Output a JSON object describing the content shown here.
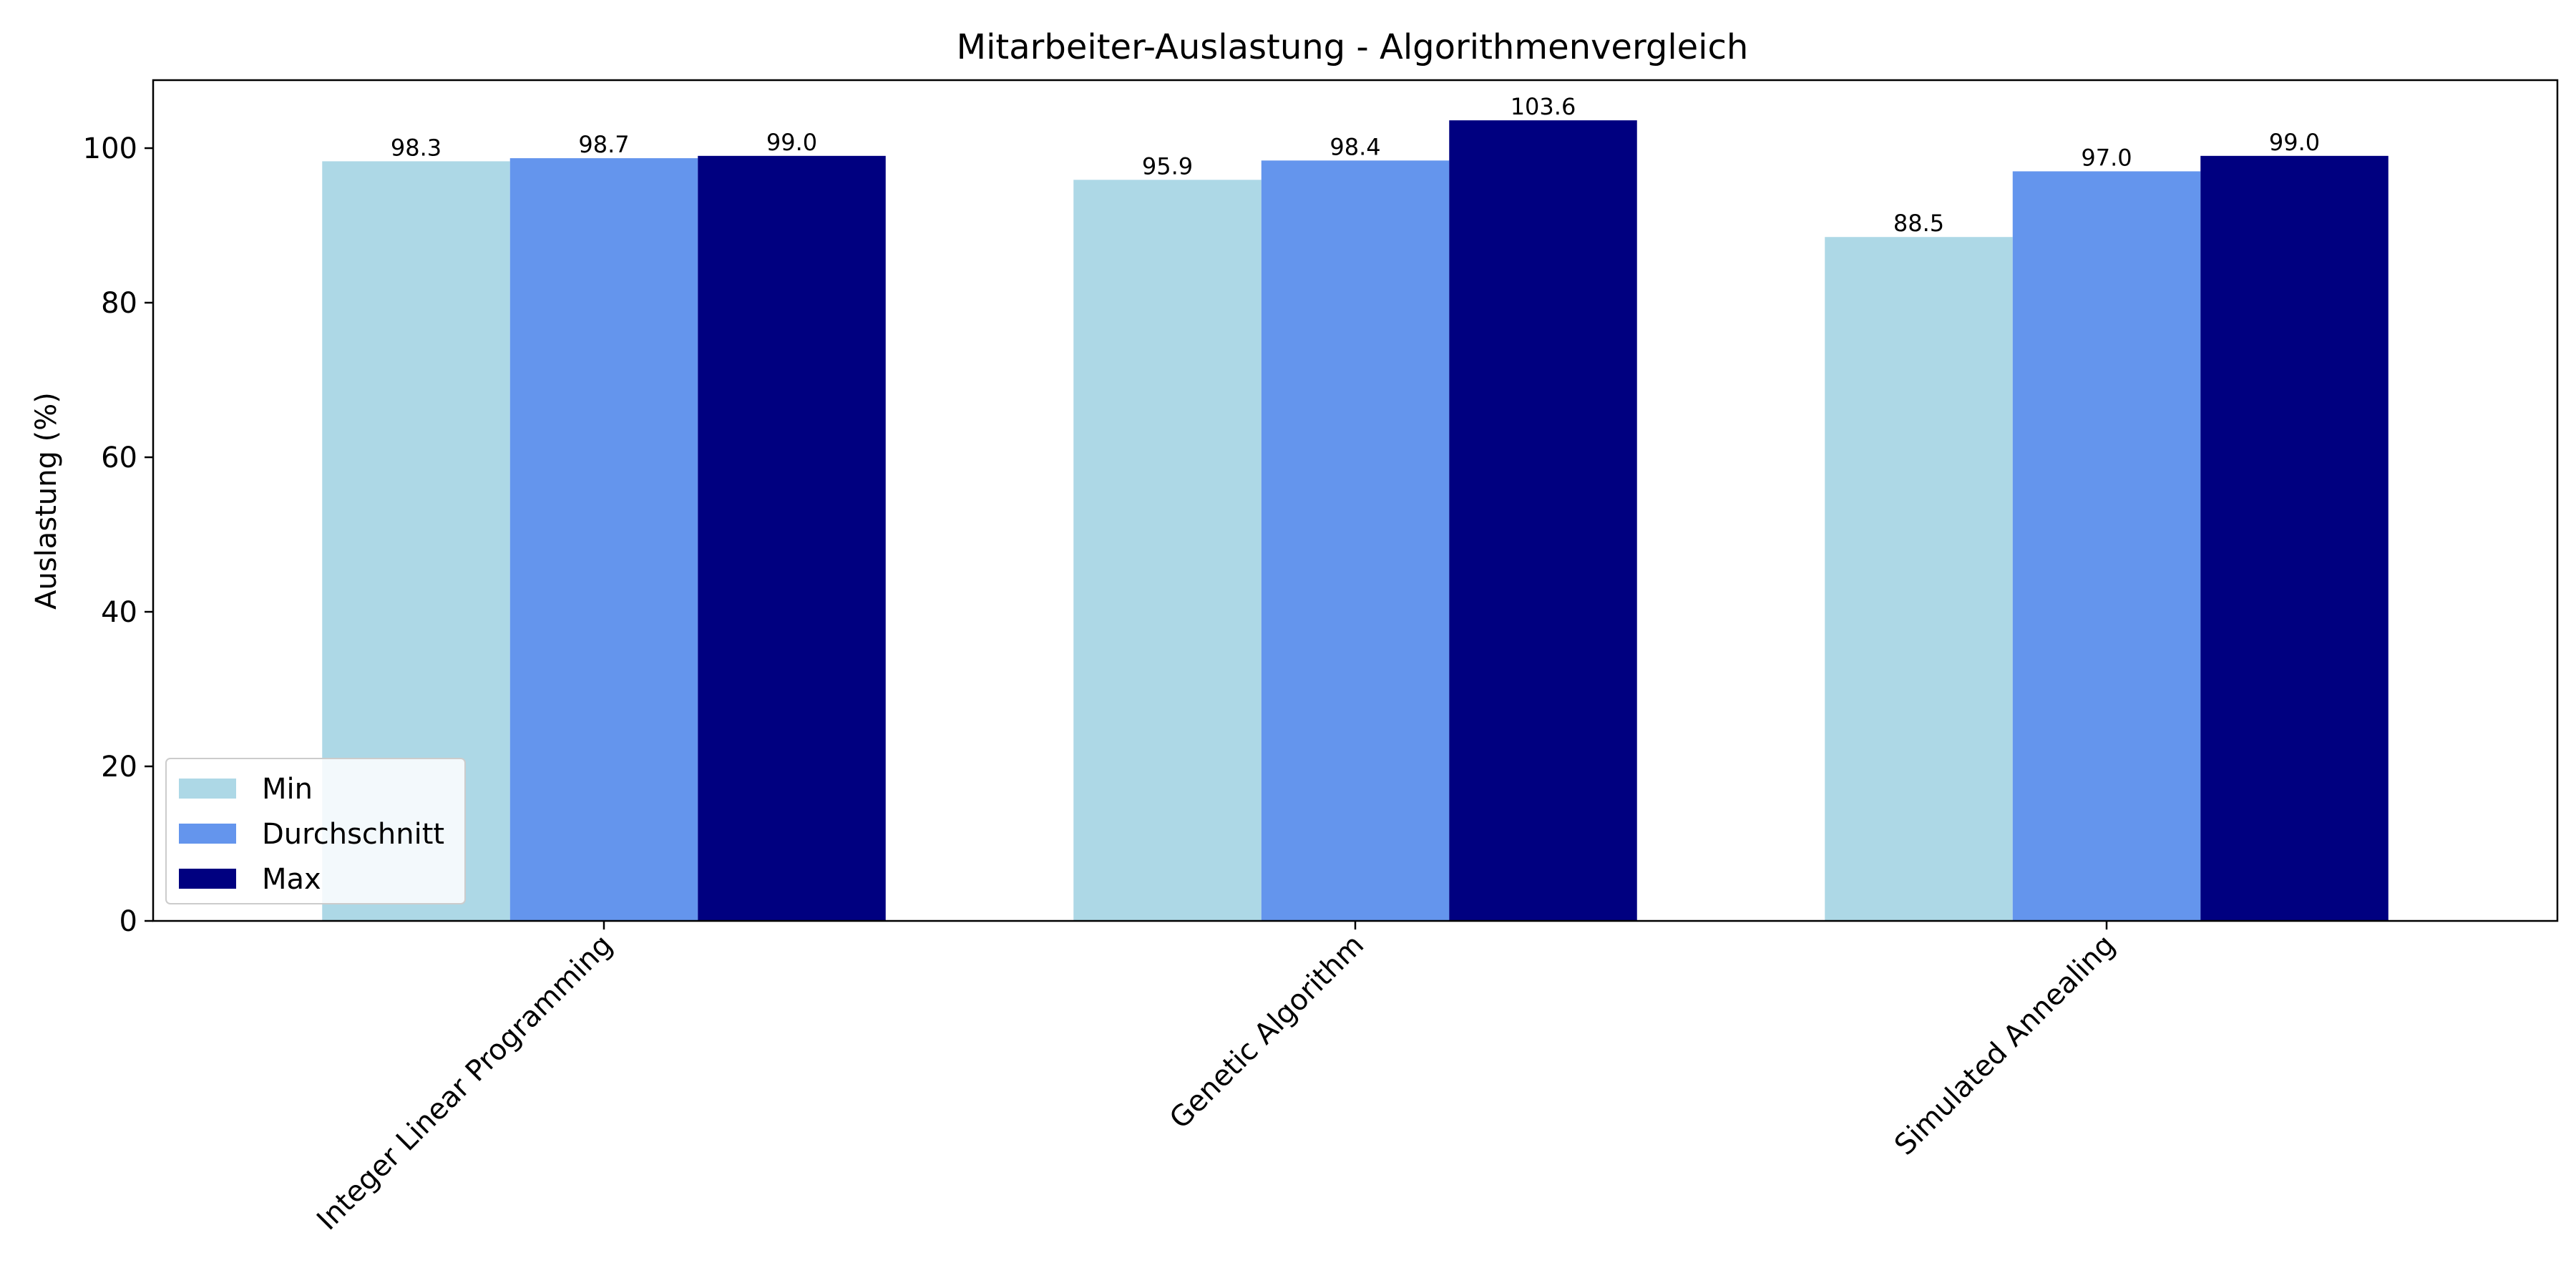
{
  "chart_data": {
    "type": "bar",
    "title": "Mitarbeiter-Auslastung - Algorithmenvergleich",
    "xlabel": "",
    "ylabel": "Auslastung (%)",
    "categories": [
      "Integer Linear Programming",
      "Genetic Algorithm",
      "Simulated Annealing"
    ],
    "series": [
      {
        "name": "Min",
        "color": "#add8e6",
        "values": [
          98.3,
          95.9,
          88.5
        ],
        "labels": [
          "98.3",
          "95.9",
          "88.5"
        ]
      },
      {
        "name": "Durchschnitt",
        "color": "#6495ed",
        "values": [
          98.7,
          98.4,
          97.0
        ],
        "labels": [
          "98.7",
          "98.4",
          "97.0"
        ]
      },
      {
        "name": "Max",
        "color": "#000080",
        "values": [
          99.0,
          103.6,
          99.0
        ],
        "labels": [
          "99.0",
          "103.6",
          "99.0"
        ]
      }
    ],
    "ylim": [
      0,
      108.8
    ],
    "yticks": [
      "0",
      "20",
      "40",
      "60",
      "80",
      "100"
    ],
    "grid": false,
    "legend_position": "lower-left"
  }
}
